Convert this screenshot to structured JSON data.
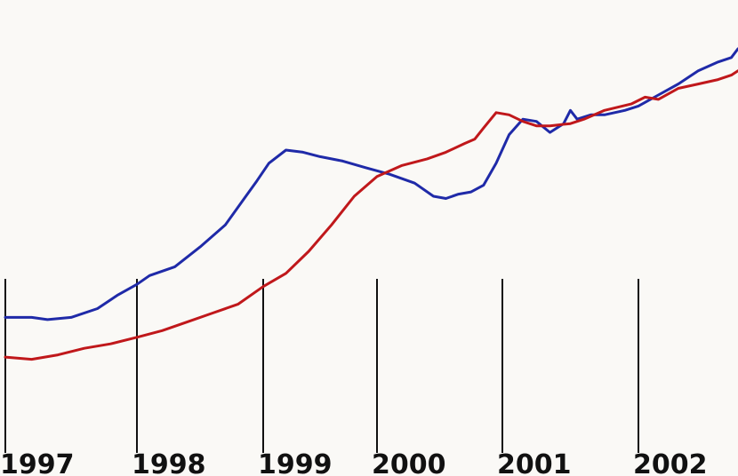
{
  "chart_data": {
    "type": "line",
    "title": "",
    "xlabel": "",
    "ylabel": "",
    "x_tick_labels": [
      "1997",
      "1998",
      "1999",
      "2000",
      "2001",
      "2002"
    ],
    "x_tick_values": [
      1997.0,
      1998.0,
      1999.0,
      2000.0,
      2001.0,
      2002.0
    ],
    "xlim": [
      1997.0,
      2002.75
    ],
    "ylim": [
      0,
      100
    ],
    "grid": false,
    "legend": "none",
    "y_axis_visible": false,
    "series": [
      {
        "color": "#1f2aa8",
        "points": [
          [
            1997.0,
            36
          ],
          [
            1997.2,
            36
          ],
          [
            1997.32,
            35.5
          ],
          [
            1997.5,
            36
          ],
          [
            1997.7,
            38
          ],
          [
            1997.85,
            41
          ],
          [
            1998.0,
            43.5
          ],
          [
            1998.1,
            45.5
          ],
          [
            1998.3,
            47.5
          ],
          [
            1998.5,
            52
          ],
          [
            1998.7,
            57
          ],
          [
            1998.85,
            63
          ],
          [
            1998.95,
            67
          ],
          [
            1999.05,
            71
          ],
          [
            1999.2,
            74
          ],
          [
            1999.35,
            73.5
          ],
          [
            1999.5,
            72.5
          ],
          [
            1999.7,
            71.5
          ],
          [
            1999.9,
            70
          ],
          [
            2000.1,
            68.5
          ],
          [
            2000.3,
            66.5
          ],
          [
            2000.45,
            63.5
          ],
          [
            2000.55,
            63
          ],
          [
            2000.65,
            64
          ],
          [
            2000.75,
            64.5
          ],
          [
            2000.85,
            66
          ],
          [
            2000.95,
            71
          ],
          [
            2001.05,
            77.5
          ],
          [
            2001.15,
            81
          ],
          [
            2001.25,
            80.5
          ],
          [
            2001.35,
            78
          ],
          [
            2001.45,
            80
          ],
          [
            2001.5,
            83
          ],
          [
            2001.55,
            81
          ],
          [
            2001.65,
            82
          ],
          [
            2001.75,
            82
          ],
          [
            2001.9,
            83
          ],
          [
            2002.0,
            84
          ],
          [
            2002.15,
            86.5
          ],
          [
            2002.3,
            89
          ],
          [
            2002.45,
            92
          ],
          [
            2002.6,
            94
          ],
          [
            2002.7,
            95
          ],
          [
            2002.75,
            97
          ]
        ]
      },
      {
        "color": "#c0181b",
        "points": [
          [
            1997.0,
            27
          ],
          [
            1997.2,
            26.5
          ],
          [
            1997.4,
            27.5
          ],
          [
            1997.6,
            29
          ],
          [
            1997.8,
            30
          ],
          [
            1998.0,
            31.5
          ],
          [
            1998.2,
            33
          ],
          [
            1998.4,
            35
          ],
          [
            1998.6,
            37
          ],
          [
            1998.8,
            39
          ],
          [
            1999.0,
            43
          ],
          [
            1999.2,
            46
          ],
          [
            1999.4,
            51
          ],
          [
            1999.6,
            57
          ],
          [
            1999.8,
            63.5
          ],
          [
            2000.0,
            68
          ],
          [
            2000.2,
            70.5
          ],
          [
            2000.4,
            72
          ],
          [
            2000.55,
            73.5
          ],
          [
            2000.7,
            75.5
          ],
          [
            2000.78,
            76.5
          ],
          [
            2000.85,
            79
          ],
          [
            2000.95,
            82.5
          ],
          [
            2001.05,
            82
          ],
          [
            2001.15,
            80.5
          ],
          [
            2001.25,
            79.5
          ],
          [
            2001.35,
            79.5
          ],
          [
            2001.5,
            80
          ],
          [
            2001.6,
            81
          ],
          [
            2001.75,
            83
          ],
          [
            2001.95,
            84.5
          ],
          [
            2002.05,
            86
          ],
          [
            2002.15,
            85.5
          ],
          [
            2002.3,
            88
          ],
          [
            2002.45,
            89
          ],
          [
            2002.6,
            90
          ],
          [
            2002.7,
            91
          ],
          [
            2002.75,
            92
          ]
        ]
      }
    ]
  }
}
